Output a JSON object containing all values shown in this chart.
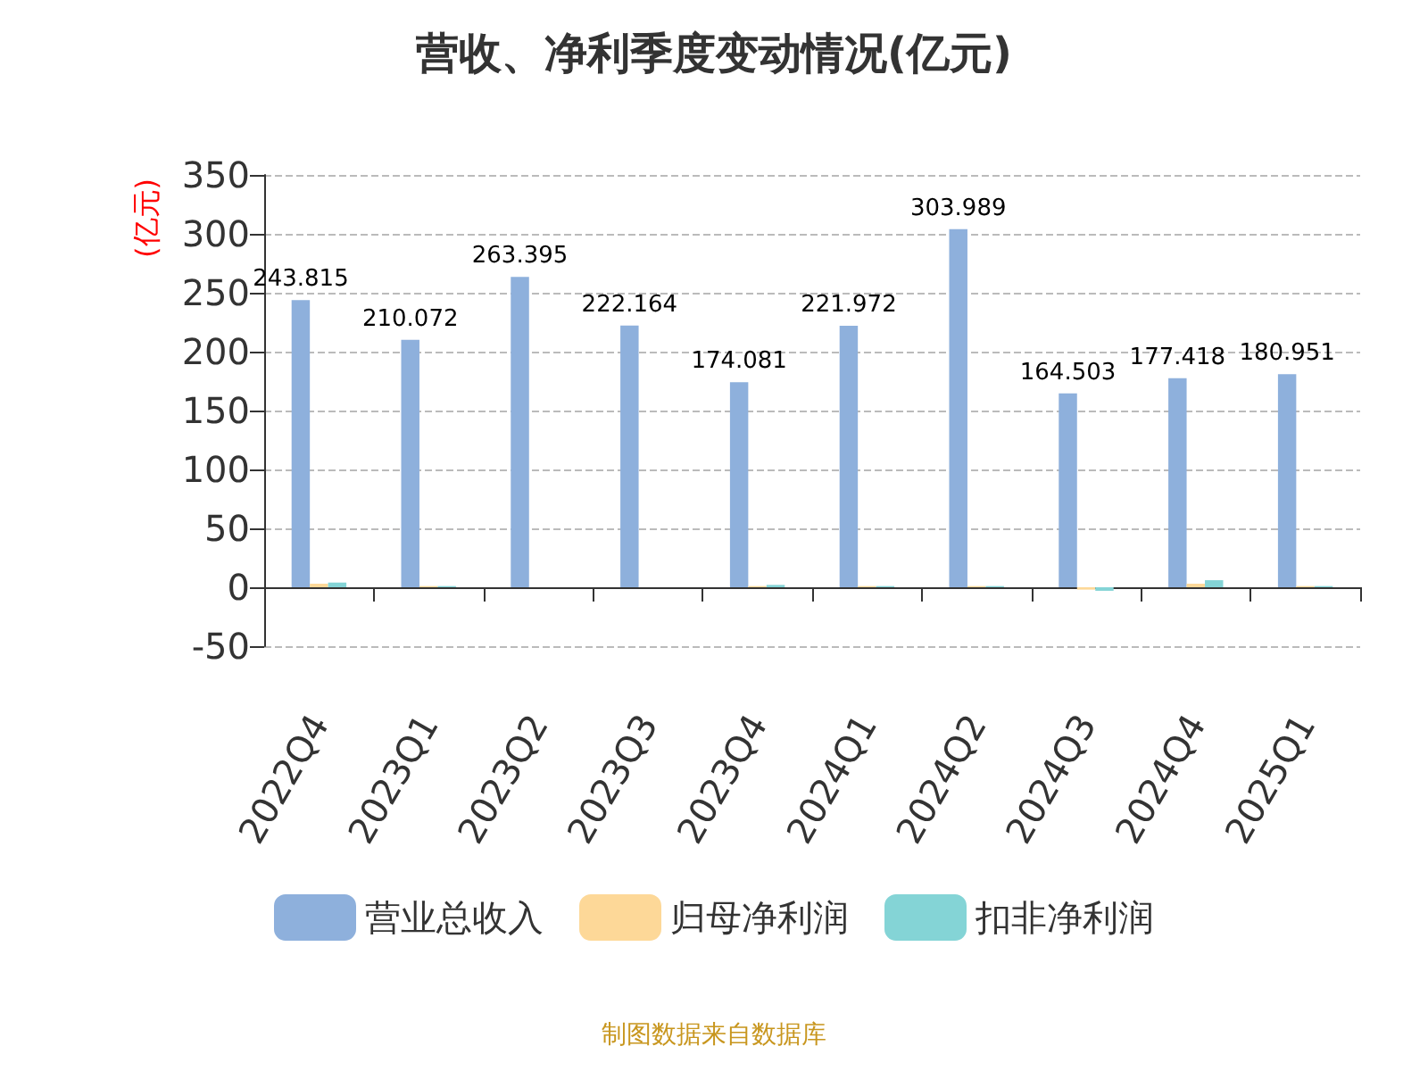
{
  "chart_data": {
    "type": "bar",
    "title": "营收、净利季度变动情况(亿元)",
    "ylabel": "(亿元)",
    "categories": [
      "2022Q4",
      "2023Q1",
      "2023Q2",
      "2023Q3",
      "2023Q4",
      "2024Q1",
      "2024Q2",
      "2024Q3",
      "2024Q4",
      "2025Q1"
    ],
    "series": [
      {
        "name": "营业总收入",
        "color": "#8eb0dc",
        "values": [
          243.815,
          210.072,
          263.395,
          222.164,
          174.081,
          221.972,
          303.989,
          164.503,
          177.418,
          180.951
        ],
        "value_labels": [
          "243.815",
          "210.072",
          "263.395",
          "222.164",
          "174.081",
          "221.972",
          "303.989",
          "164.503",
          "177.418",
          "180.951"
        ]
      },
      {
        "name": "归母净利润",
        "color": "#fdd898",
        "values": [
          3,
          1,
          0,
          0,
          1,
          1,
          1,
          -2,
          3,
          1
        ]
      },
      {
        "name": "扣非净利润",
        "color": "#84d4d6",
        "values": [
          4,
          1,
          0,
          0,
          2,
          1,
          1,
          -3,
          6,
          1
        ]
      }
    ],
    "ylim": [
      -50,
      350
    ],
    "yticks": [
      -50,
      0,
      50,
      100,
      150,
      200,
      250,
      300,
      350
    ],
    "grid": "y",
    "legend": "bottom",
    "annotations": [
      "制图数据来自数据库"
    ]
  }
}
